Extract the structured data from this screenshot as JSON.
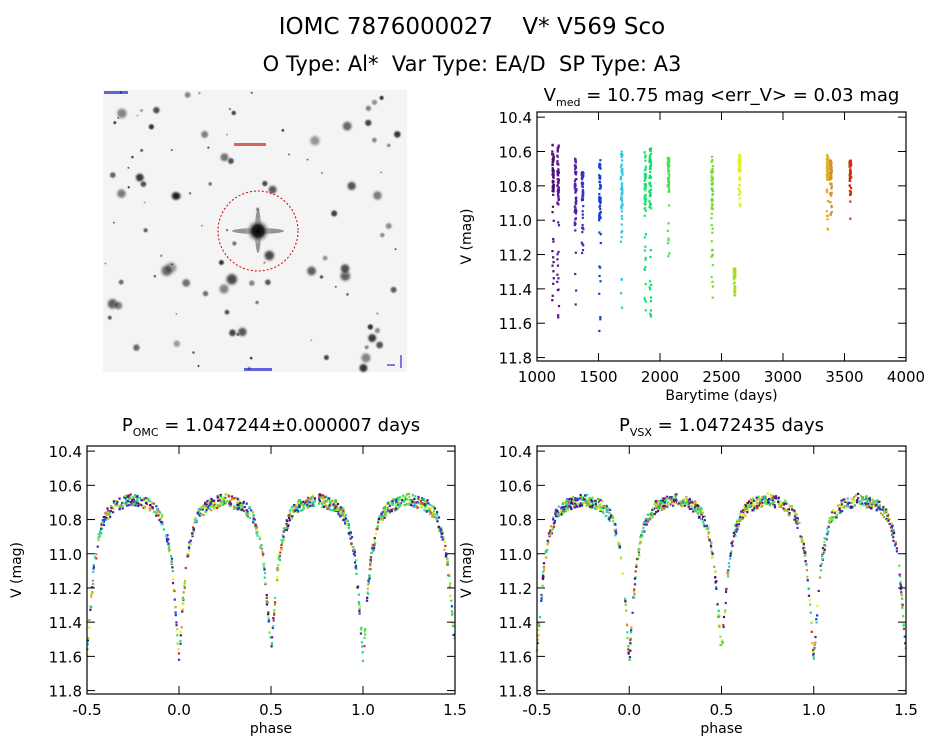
{
  "header": {
    "title": "IOMC 7876000027    V* V569 Sco",
    "subtitle": "O Type: Al*  Var Type: EA/D  SP Type: A3"
  },
  "thumbnail": {
    "marker_color": "#cc0000",
    "label_color": "#0000cc"
  },
  "chart_data": [
    {
      "type": "scatter",
      "title_main": "V",
      "title_sub": "med",
      "title_rest": " = 10.75 mag <err_V> = 0.03 mag",
      "xlabel": "Barytime (days)",
      "ylabel": "V (mag)",
      "xlim": [
        1000,
        4000
      ],
      "ylim": [
        11.82,
        10.37
      ],
      "xticks": [
        "1000",
        "1500",
        "2000",
        "2500",
        "3000",
        "3500",
        "4000"
      ],
      "yticks": [
        "10.4",
        "10.6",
        "10.8",
        "11.0",
        "11.2",
        "11.4",
        "11.6",
        "11.8"
      ],
      "series": [
        {
          "t": 1130,
          "vmin": 10.55,
          "vmax": 11.47,
          "color": "#4b0c6b"
        },
        {
          "t": 1171,
          "vmin": 10.56,
          "vmax": 11.57,
          "color": "#5a1090"
        },
        {
          "t": 1313,
          "vmin": 10.64,
          "vmax": 11.6,
          "color": "#5020a0"
        },
        {
          "t": 1370,
          "vmin": 10.72,
          "vmax": 11.2,
          "color": "#4030c0"
        },
        {
          "t": 1511,
          "vmin": 10.65,
          "vmax": 11.7,
          "color": "#1040d0"
        },
        {
          "t": 1688,
          "vmin": 10.6,
          "vmax": 11.53,
          "color": "#30c8e0"
        },
        {
          "t": 1879,
          "vmin": 10.6,
          "vmax": 11.57,
          "color": "#20e080"
        },
        {
          "t": 1920,
          "vmin": 10.58,
          "vmax": 11.58,
          "color": "#10e060"
        },
        {
          "t": 2069,
          "vmin": 10.63,
          "vmax": 11.22,
          "color": "#50e050"
        },
        {
          "t": 2423,
          "vmin": 10.63,
          "vmax": 11.52,
          "color": "#70e030"
        },
        {
          "t": 2605,
          "vmin": 11.28,
          "vmax": 11.44,
          "color": "#a0e020"
        },
        {
          "t": 2646,
          "vmin": 10.62,
          "vmax": 10.92,
          "color": "#e0f020"
        },
        {
          "t": 3362,
          "vmin": 10.62,
          "vmax": 11.06,
          "color": "#e0b020"
        },
        {
          "t": 3389,
          "vmin": 10.65,
          "vmax": 10.98,
          "color": "#d09030"
        },
        {
          "t": 3547,
          "vmin": 10.65,
          "vmax": 11.0,
          "color": "#d03010"
        }
      ]
    },
    {
      "type": "scatter",
      "title_main": "P",
      "title_sub": "OMC",
      "title_rest": " = 1.047244±0.000007 days",
      "xlabel": "phase",
      "ylabel": "V (mag)",
      "xlim": [
        -0.5,
        1.5
      ],
      "ylim": [
        11.82,
        10.37
      ],
      "xticks": [
        "-0.5",
        "0.0",
        "0.5",
        "1.0",
        "1.5"
      ],
      "yticks": [
        "10.4",
        "10.6",
        "10.8",
        "11.0",
        "11.2",
        "11.4",
        "11.6",
        "11.8"
      ],
      "phase_curve": [
        [
          0,
          11.62
        ],
        [
          0.02,
          11.3
        ],
        [
          0.04,
          11.05
        ],
        [
          0.07,
          10.88
        ],
        [
          0.1,
          10.78
        ],
        [
          0.15,
          10.72
        ],
        [
          0.25,
          10.68
        ],
        [
          0.35,
          10.72
        ],
        [
          0.4,
          10.78
        ],
        [
          0.43,
          10.88
        ],
        [
          0.46,
          11.05
        ],
        [
          0.48,
          11.3
        ],
        [
          0.5,
          11.57
        ],
        [
          0.52,
          11.3
        ],
        [
          0.54,
          11.05
        ],
        [
          0.57,
          10.88
        ],
        [
          0.6,
          10.78
        ],
        [
          0.65,
          10.72
        ],
        [
          0.75,
          10.68
        ],
        [
          0.85,
          10.72
        ],
        [
          0.9,
          10.78
        ],
        [
          0.93,
          10.88
        ],
        [
          0.96,
          11.05
        ],
        [
          0.98,
          11.3
        ],
        [
          1.0,
          11.62
        ]
      ]
    },
    {
      "type": "scatter",
      "title_main": "P",
      "title_sub": "VSX",
      "title_rest": " = 1.0472435 days",
      "xlabel": "phase",
      "ylabel": "V (mag)",
      "xlim": [
        -0.5,
        1.5
      ],
      "ylim": [
        11.82,
        10.37
      ],
      "xticks": [
        "-0.5",
        "0.0",
        "0.5",
        "1.0",
        "1.5"
      ],
      "yticks": [
        "10.4",
        "10.6",
        "10.8",
        "11.0",
        "11.2",
        "11.4",
        "11.6",
        "11.8"
      ],
      "phase_curve": [
        [
          0,
          11.62
        ],
        [
          0.02,
          11.3
        ],
        [
          0.04,
          11.05
        ],
        [
          0.07,
          10.88
        ],
        [
          0.1,
          10.78
        ],
        [
          0.15,
          10.72
        ],
        [
          0.25,
          10.68
        ],
        [
          0.35,
          10.72
        ],
        [
          0.4,
          10.78
        ],
        [
          0.43,
          10.88
        ],
        [
          0.46,
          11.05
        ],
        [
          0.48,
          11.3
        ],
        [
          0.5,
          11.57
        ],
        [
          0.52,
          11.3
        ],
        [
          0.54,
          11.05
        ],
        [
          0.57,
          10.88
        ],
        [
          0.6,
          10.78
        ],
        [
          0.65,
          10.72
        ],
        [
          0.75,
          10.68
        ],
        [
          0.85,
          10.72
        ],
        [
          0.9,
          10.78
        ],
        [
          0.93,
          10.88
        ],
        [
          0.96,
          11.05
        ],
        [
          0.98,
          11.3
        ],
        [
          1.0,
          11.62
        ]
      ]
    }
  ]
}
